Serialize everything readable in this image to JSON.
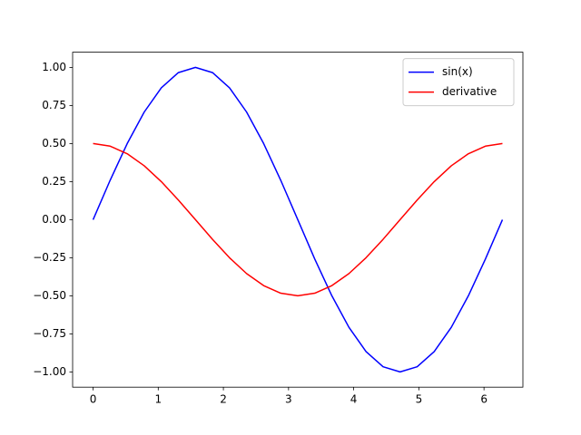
{
  "chart_data": {
    "type": "line",
    "x": [
      0,
      0.262,
      0.524,
      0.785,
      1.047,
      1.309,
      1.571,
      1.833,
      2.094,
      2.356,
      2.618,
      2.88,
      3.142,
      3.403,
      3.665,
      3.927,
      4.189,
      4.451,
      4.712,
      4.974,
      5.236,
      5.498,
      5.76,
      6.021,
      6.283
    ],
    "series": [
      {
        "name": "sin(x)",
        "color": "#0000ff",
        "values": [
          0,
          0.259,
          0.5,
          0.707,
          0.866,
          0.966,
          1,
          0.966,
          0.866,
          0.707,
          0.5,
          0.259,
          0,
          -0.259,
          -0.5,
          -0.707,
          -0.866,
          -0.966,
          -1,
          -0.966,
          -0.866,
          -0.707,
          -0.5,
          -0.259,
          0
        ]
      },
      {
        "name": "derivative",
        "color": "#ff0000",
        "values": [
          0.5,
          0.483,
          0.433,
          0.354,
          0.25,
          0.129,
          0,
          -0.129,
          -0.25,
          -0.354,
          -0.433,
          -0.483,
          -0.5,
          -0.483,
          -0.433,
          -0.354,
          -0.25,
          -0.129,
          0,
          0.129,
          0.25,
          0.354,
          0.433,
          0.483,
          0.5
        ]
      }
    ],
    "xlim": [
      -0.314,
      6.597
    ],
    "ylim": [
      -1.1,
      1.1
    ],
    "xticks": [
      0,
      1,
      2,
      3,
      4,
      5,
      6
    ],
    "yticks": [
      {
        "value": -1,
        "label": "−1.00"
      },
      {
        "value": -0.75,
        "label": "−0.75"
      },
      {
        "value": -0.5,
        "label": "−0.50"
      },
      {
        "value": -0.25,
        "label": "−0.25"
      },
      {
        "value": 0,
        "label": "0.00"
      },
      {
        "value": 0.25,
        "label": "0.25"
      },
      {
        "value": 0.5,
        "label": "0.50"
      },
      {
        "value": 0.75,
        "label": "0.75"
      },
      {
        "value": 1,
        "label": "1.00"
      }
    ],
    "legend": "upper right",
    "grid": false
  }
}
